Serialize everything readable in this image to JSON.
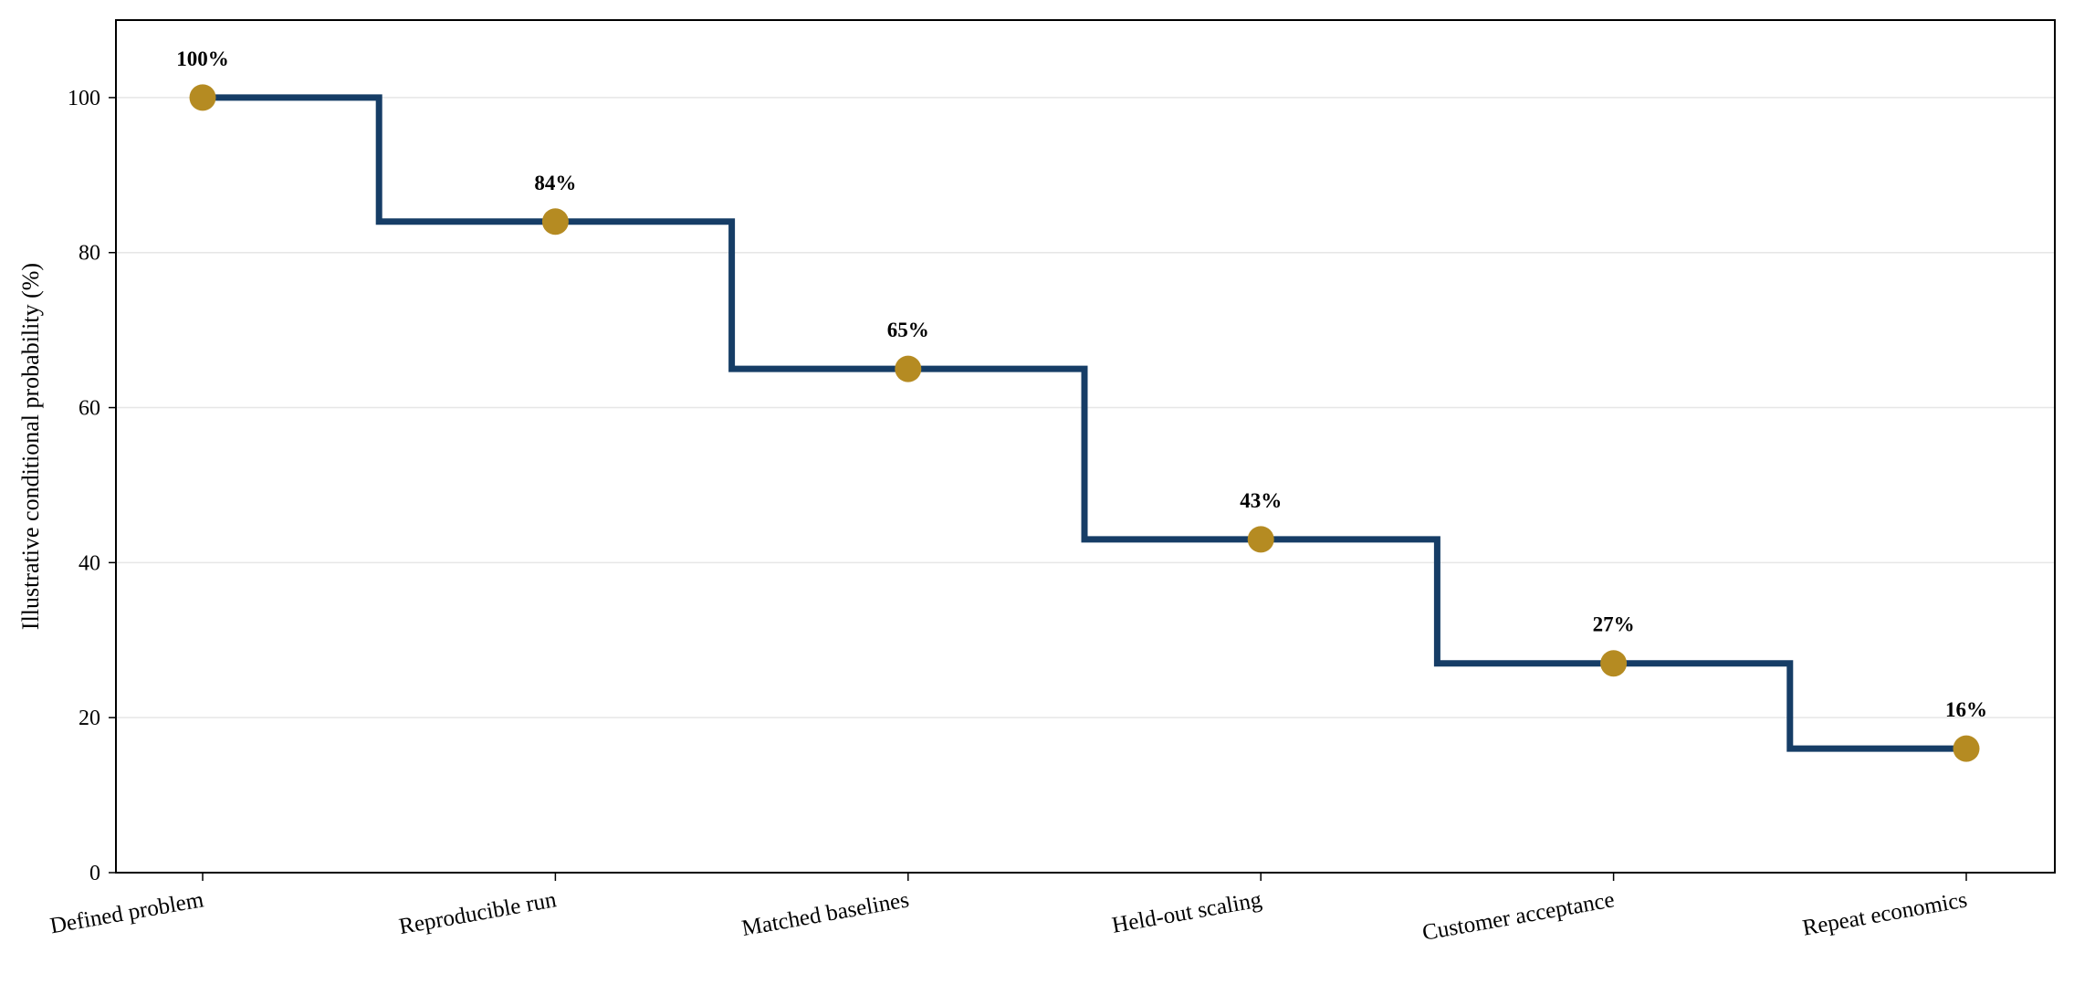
{
  "chart_data": {
    "type": "line",
    "step": "mid",
    "categories": [
      "Defined problem",
      "Reproducible run",
      "Matched baselines",
      "Held-out scaling",
      "Customer acceptance",
      "Repeat economics"
    ],
    "series": [
      {
        "values": [
          100,
          84,
          65,
          43,
          27,
          16
        ]
      }
    ],
    "data_labels": [
      "100%",
      "84%",
      "65%",
      "43%",
      "27%",
      "16%"
    ],
    "xlabel": "",
    "ylabel": "Illustrative conditional probability (%)",
    "ylim": [
      0,
      110
    ],
    "yticks": [
      0,
      20,
      40,
      60,
      80,
      100
    ],
    "grid": "horizontal",
    "colors": {
      "line": "#163d66",
      "marker": "#b58b22",
      "grid": "#e6e6e6"
    }
  }
}
